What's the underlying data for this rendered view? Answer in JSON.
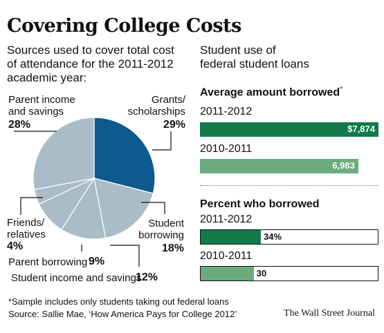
{
  "title": "Covering College Costs",
  "left_subhead": "Sources used to cover total cost of attendance for the 2011-2012 academic year:",
  "right_subhead": "Student use of federal student loans",
  "colors": {
    "highlight": "#0d5a8f",
    "slice": "#abbcc9",
    "slice_edge": "#ffffff",
    "dark_green": "#137a4a",
    "light_green": "#6cab7c",
    "leader": "#111111"
  },
  "chart_data": [
    {
      "type": "pie",
      "title": "Sources used to cover total cost of attendance for the 2011-2012 academic year:",
      "slices": [
        {
          "label": "Grants/ scholarships",
          "value": 29,
          "value_label": "29%",
          "highlight": true
        },
        {
          "label": "Student borrowing",
          "value": 18,
          "value_label": "18%"
        },
        {
          "label": "Student income and savings",
          "value": 12,
          "value_label": "12%"
        },
        {
          "label": "Parent borrowing",
          "value": 9,
          "value_label": "9%"
        },
        {
          "label": "Friends/ relatives",
          "value": 4,
          "value_label": "4%"
        },
        {
          "label": "Parent income and savings",
          "value": 28,
          "value_label": "28%"
        }
      ]
    },
    {
      "type": "bar",
      "orientation": "horizontal",
      "title": "Average amount borrowed*",
      "categories": [
        "2011-2012",
        "2010-2011"
      ],
      "values": [
        7874,
        6983
      ],
      "value_labels": [
        "$7,874",
        "6,983"
      ],
      "xlim": [
        0,
        7874
      ]
    },
    {
      "type": "bar",
      "orientation": "horizontal",
      "title": "Percent who borrowed",
      "categories": [
        "2011-2012",
        "2010-2011"
      ],
      "values": [
        34,
        30
      ],
      "value_labels": [
        "34%",
        "30"
      ],
      "xlim": [
        0,
        100
      ]
    }
  ],
  "labels": {
    "parent_income_1": "Parent income",
    "parent_income_2": "and savings",
    "grants_1": "Grants/",
    "grants_2": "scholarships",
    "student_borrowing_1": "Student",
    "student_borrowing_2": "borrowing",
    "friends_1": "Friends/",
    "friends_2": "relatives",
    "parent_borrowing": "Parent borrowing",
    "student_income": "Student income and savings"
  },
  "avg_title": "Average amount borrowed",
  "avg_title_mark": "*",
  "pct_title": "Percent who borrowed",
  "footnote": "*Sample includes only students taking out federal loans",
  "source": "Source: Sallie Mae, ‘How America Pays for College 2012’",
  "credit": "The Wall Street Journal"
}
